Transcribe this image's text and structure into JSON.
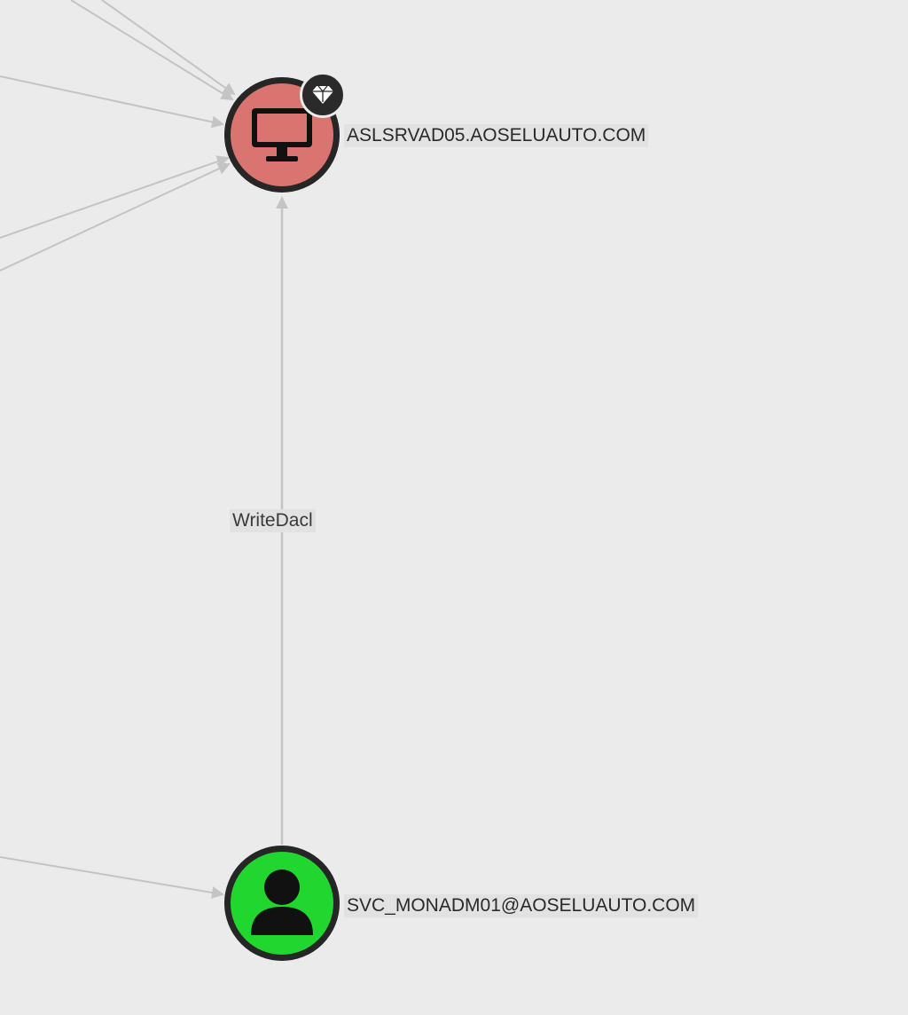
{
  "graph": {
    "nodes": [
      {
        "id": "computer",
        "type": "Computer",
        "label": "ASLSRVAD05.AOSELUAUTO.COM",
        "fill_color": "#d97470",
        "icon": "monitor-icon",
        "badge_icon": "diamond-icon"
      },
      {
        "id": "user",
        "type": "User",
        "label": "SVC_MONADM01@AOSELUAUTO.COM",
        "fill_color": "#22d630",
        "icon": "user-icon"
      }
    ],
    "edges": [
      {
        "from": "user",
        "to": "computer",
        "label": "WriteDacl",
        "color": "#bdbdbd"
      }
    ]
  },
  "colors": {
    "background": "#ebebeb",
    "edge": "#bdbdbd",
    "node_border": "#262626"
  }
}
